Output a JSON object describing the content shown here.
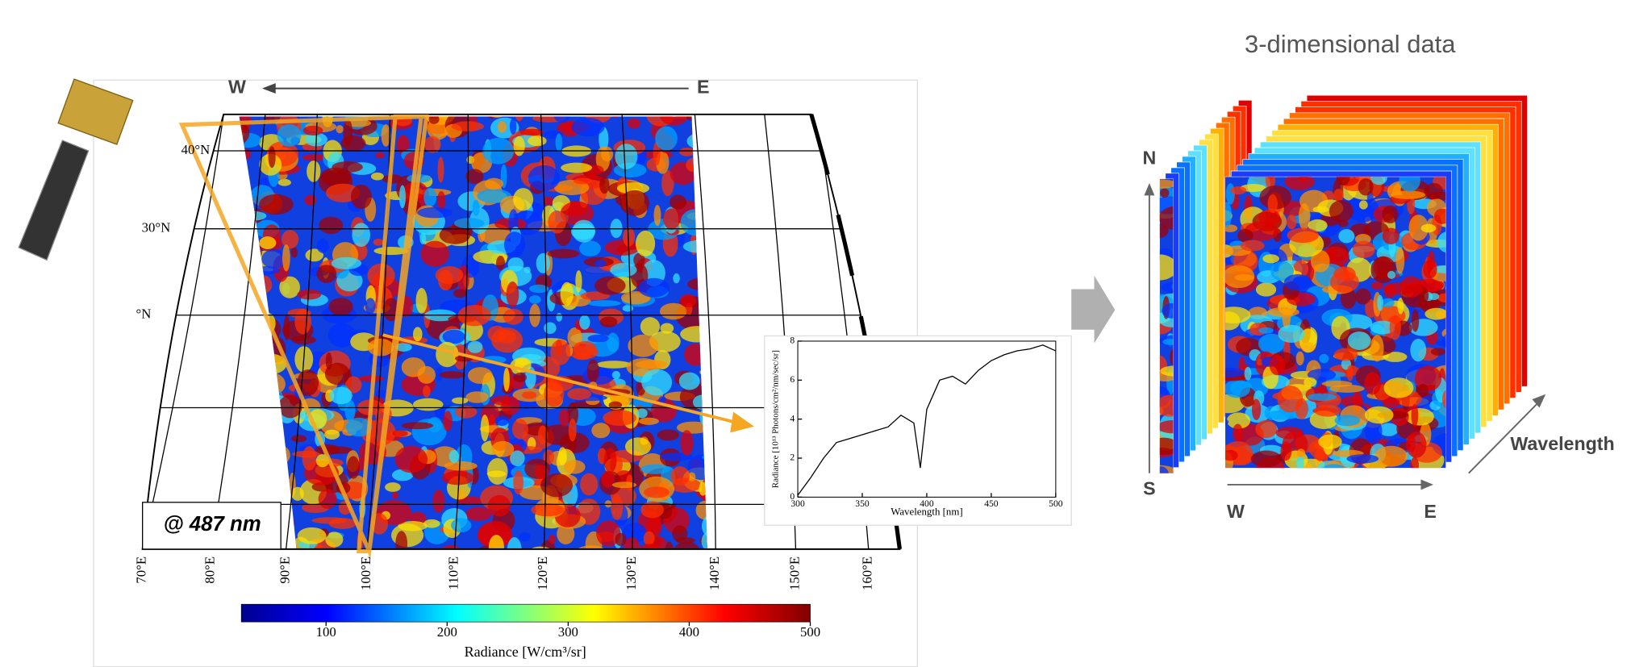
{
  "map": {
    "direction_w": "W",
    "direction_e": "E",
    "lat_labels": [
      "40°N",
      "30°N",
      "°N"
    ],
    "lon_labels": [
      "70°E",
      "80°E",
      "90°E",
      "100°E",
      "110°E",
      "120°E",
      "130°E",
      "140°E",
      "150°E",
      "160°E"
    ],
    "band_label": "@ 487 nm"
  },
  "colorbar": {
    "label": "Radiance [W/cm³/sr]",
    "lim": [
      30,
      500
    ],
    "ticks": [
      100,
      200,
      300,
      400,
      500
    ]
  },
  "chart_data": {
    "type": "line",
    "x_label": "Wavelength [nm]",
    "y_label": "Radiance [10¹³ Photons/cm²/nm/sec/sr]",
    "x": [
      300,
      310,
      320,
      330,
      340,
      350,
      360,
      370,
      380,
      390,
      395,
      400,
      410,
      420,
      430,
      440,
      450,
      460,
      470,
      480,
      490,
      500
    ],
    "y": [
      0.1,
      1.0,
      2.0,
      2.8,
      3.0,
      3.2,
      3.4,
      3.6,
      4.2,
      3.8,
      1.5,
      4.5,
      6.0,
      6.2,
      5.8,
      6.5,
      7.0,
      7.3,
      7.5,
      7.6,
      7.8,
      7.5
    ],
    "xlim": [
      300,
      500
    ],
    "ylim": [
      0,
      8
    ],
    "xticks": [
      300,
      350,
      400,
      450,
      500
    ],
    "yticks": [
      0,
      2,
      4,
      6,
      8
    ],
    "color": "#000000"
  },
  "cube": {
    "title": "3-dimensional data",
    "north": "N",
    "south": "S",
    "west": "W",
    "east": "E",
    "wavelength": "Wavelength"
  }
}
